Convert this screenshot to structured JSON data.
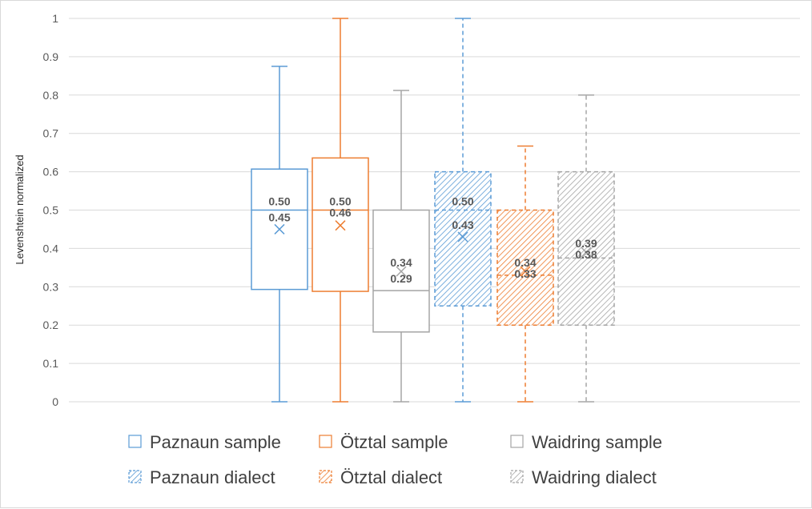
{
  "chart_data": {
    "type": "box",
    "ylabel": "Levenshtein normalized",
    "ylim": [
      0,
      1
    ],
    "yticks": [
      "0",
      "0.1",
      "0.2",
      "0.3",
      "0.4",
      "0.5",
      "0.6",
      "0.7",
      "0.8",
      "0.9",
      "1"
    ],
    "grid": true,
    "legend_position": "bottom",
    "series": [
      {
        "name": "Paznaun sample",
        "color": "#5b9bd5",
        "style": "solid",
        "min": 0,
        "q1": 0.293,
        "median": 0.5,
        "q3": 0.607,
        "max": 0.875,
        "mean": 0.45,
        "median_label": "0.50",
        "mean_label": "0.45"
      },
      {
        "name": "Ötztal sample",
        "color": "#ed7d31",
        "style": "solid",
        "min": 0,
        "q1": 0.288,
        "median": 0.5,
        "q3": 0.636,
        "max": 1.0,
        "mean": 0.46,
        "median_label": "0.50",
        "mean_label": "0.46"
      },
      {
        "name": "Waidring sample",
        "color": "#a5a5a5",
        "style": "solid",
        "min": 0,
        "q1": 0.182,
        "median": 0.29,
        "q3": 0.5,
        "max": 0.812,
        "mean": 0.34,
        "median_label": "0.29",
        "mean_label": "0.34"
      },
      {
        "name": "Paznaun dialect",
        "color": "#5b9bd5",
        "style": "hatched",
        "min": 0,
        "q1": 0.25,
        "median": 0.5,
        "q3": 0.6,
        "max": 1.0,
        "mean": 0.43,
        "median_label": "0.50",
        "mean_label": "0.43"
      },
      {
        "name": "Ötztal dialect",
        "color": "#ed7d31",
        "style": "hatched",
        "min": 0,
        "q1": 0.2,
        "median": 0.33,
        "q3": 0.5,
        "max": 0.667,
        "mean": 0.34,
        "median_label": "0.33",
        "mean_label": "0.34"
      },
      {
        "name": "Waidring dialect",
        "color": "#a5a5a5",
        "style": "hatched",
        "min": 0,
        "q1": 0.2,
        "median": 0.375,
        "q3": 0.6,
        "max": 0.8,
        "mean": 0.39,
        "median_label": "0.38",
        "mean_label": "0.39"
      }
    ]
  }
}
